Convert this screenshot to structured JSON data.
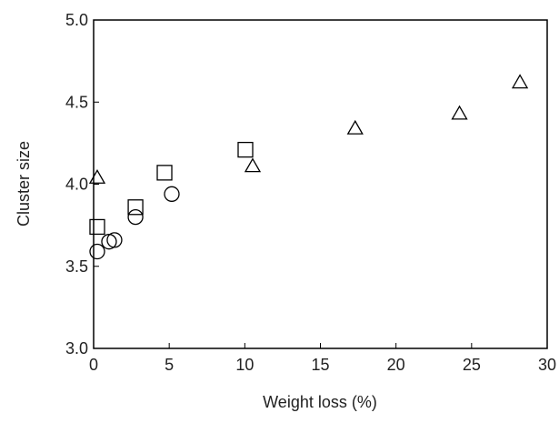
{
  "chart_data": {
    "type": "scatter",
    "xlabel": "Weight loss (%)",
    "ylabel": "Cluster size",
    "xlim": [
      0,
      30
    ],
    "ylim": [
      3,
      5
    ],
    "xticks": [
      0,
      5,
      10,
      15,
      20,
      25,
      30
    ],
    "yticks": [
      {
        "value": 3,
        "label": "3.0"
      },
      3.5,
      {
        "value": 4,
        "label": "4.0"
      },
      4.5,
      {
        "value": 5,
        "label": "5.0"
      }
    ],
    "series": [
      {
        "marker": "circle",
        "color": "#000000",
        "x": [
          0.24,
          1.02,
          1.38,
          2.77,
          5.17
        ],
        "y": [
          3.59,
          3.65,
          3.66,
          3.8,
          3.94
        ]
      },
      {
        "marker": "square",
        "color": "#000000",
        "x": [
          0.24,
          2.77,
          4.69,
          10.04
        ],
        "y": [
          3.74,
          3.86,
          4.07,
          4.21
        ]
      },
      {
        "marker": "triangle",
        "color": "#000000",
        "x": [
          0.24,
          10.52,
          17.3,
          24.2,
          28.2
        ],
        "y": [
          4.04,
          4.11,
          4.34,
          4.43,
          4.62
        ]
      }
    ]
  }
}
